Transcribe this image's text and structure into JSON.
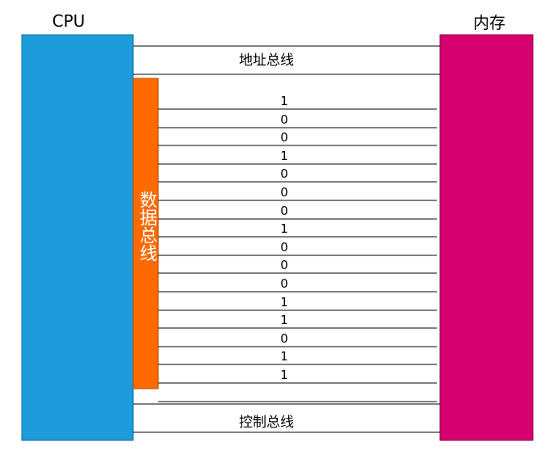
{
  "cpu": {
    "label": "CPU",
    "color": "#1E9BDB"
  },
  "memory": {
    "label": "内存",
    "color": "#D6006E"
  },
  "address_bus": {
    "label": "地址总线"
  },
  "data_bus": {
    "label": "数据总线",
    "color": "#FF6A00",
    "bits": [
      "1",
      "0",
      "0",
      "1",
      "0",
      "0",
      "0",
      "1",
      "0",
      "0",
      "0",
      "1",
      "1",
      "0",
      "1",
      "1"
    ]
  },
  "control_bus": {
    "label": "控制总线"
  }
}
